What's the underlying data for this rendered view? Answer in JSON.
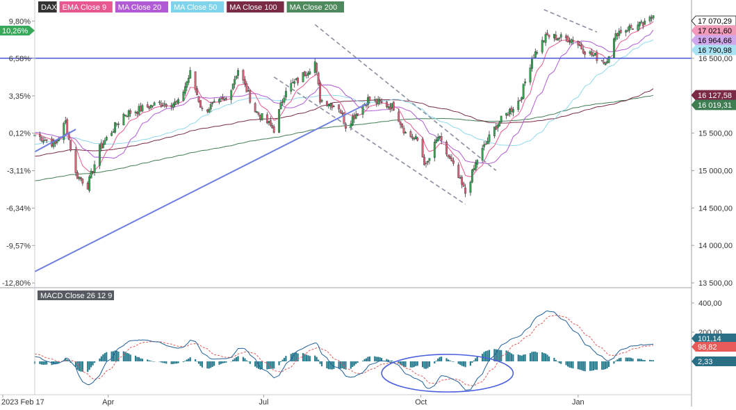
{
  "legend": [
    {
      "label": "DAX",
      "color": "#333333"
    },
    {
      "label": "EMA Close 9",
      "color": "#e8578f"
    },
    {
      "label": "MA Close 20",
      "color": "#b05ad6"
    },
    {
      "label": "MA Close 50",
      "color": "#7fd3ea"
    },
    {
      "label": "MA Close 100",
      "color": "#7a2a45"
    },
    {
      "label": "MA Close 200",
      "color": "#4e8a5e"
    }
  ],
  "price_axis": {
    "ticks": [
      "17 000,00",
      "16 500,00",
      "16 000,00",
      "15 500,00",
      "15 000,00",
      "14 500,00",
      "14 000,00",
      "13 500,00"
    ],
    "tick_values": [
      17000,
      16500,
      16000,
      15500,
      15000,
      14500,
      14000,
      13500
    ]
  },
  "pct_axis": {
    "ticks": [
      "9,80%",
      "6,58%",
      "3,35%",
      "0,12%",
      "-3,11%",
      "-6,34%",
      "-9,57%",
      "-12,80%"
    ],
    "tick_values": [
      9.8,
      6.58,
      3.35,
      0.12,
      -3.11,
      -6.34,
      -9.57,
      -12.8
    ],
    "current_label": "10,26%"
  },
  "value_badges": [
    {
      "label": "17 070,29",
      "series": "DAX",
      "value": 17070.29,
      "bg": "#ffffff",
      "fg": "#000000",
      "border": "#000000"
    },
    {
      "label": "17 021,60",
      "series": "EMA Close 9",
      "value": 17021.6,
      "bg": "#f29ab9",
      "fg": "#000000",
      "border": "#f29ab9"
    },
    {
      "label": "16 964,66",
      "series": "MA Close 20",
      "value": 16964.66,
      "bg": "#d2a8ec",
      "fg": "#000000",
      "border": "#d2a8ec"
    },
    {
      "label": "16 790,98",
      "series": "MA Close 50",
      "value": 16790.98,
      "bg": "#a9e3f3",
      "fg": "#000000",
      "border": "#a9e3f3"
    },
    {
      "label": "16 127,58",
      "series": "MA Close 100",
      "value": 16127.58,
      "bg": "#7a2a45",
      "fg": "#ffffff",
      "border": "#7a2a45"
    },
    {
      "label": "16 019,31",
      "series": "MA Close 200",
      "value": 16019.31,
      "bg": "#3f7d53",
      "fg": "#ffffff",
      "border": "#3f7d53"
    }
  ],
  "macd": {
    "label": "MACD Close 26 12 9",
    "ticks": [
      "400,00",
      "200,00"
    ],
    "tick_values": [
      400,
      200
    ],
    "badges": [
      {
        "label": "101,14",
        "value": 101.14,
        "bg": "#2a6f86",
        "fg": "#ffffff"
      },
      {
        "label": "98,82",
        "value": 98.82,
        "bg": "#e85a5a",
        "fg": "#ffffff"
      },
      {
        "label": "2,33",
        "value": 2.33,
        "bg": "#2a6f86",
        "fg": "#ffffff"
      }
    ]
  },
  "time_axis": {
    "labels": [
      "2023 Feb 17",
      "Apr",
      "Jul",
      "Oct",
      "Jan"
    ]
  },
  "colors": {
    "up": "#2fa84f",
    "down": "#e0607a",
    "trend_blue": "#6d7fe0",
    "channel": "#8a8fa0",
    "horizontal": "#3a48d8",
    "macd_line": "#1f5f9a",
    "signal_line": "#e05a5a",
    "hist": "#2a7d8f"
  },
  "chart_data": {
    "type": "candlestick",
    "title": "DAX",
    "date_range": [
      "2023-02-17",
      "2024-02-16"
    ],
    "x_labels": [
      "2023 Feb 17",
      "Apr",
      "Jul",
      "Oct",
      "Jan"
    ],
    "ylim": [
      13500,
      17250
    ],
    "anchor_closes": [
      {
        "date": "2023-02-17",
        "close": 15480
      },
      {
        "date": "2023-03-01",
        "close": 15350
      },
      {
        "date": "2023-03-07",
        "close": 15650
      },
      {
        "date": "2023-03-13",
        "close": 14950
      },
      {
        "date": "2023-03-20",
        "close": 14800
      },
      {
        "date": "2023-03-27",
        "close": 15300
      },
      {
        "date": "2023-04-10",
        "close": 15750
      },
      {
        "date": "2023-04-24",
        "close": 15850
      },
      {
        "date": "2023-05-01",
        "close": 15900
      },
      {
        "date": "2023-05-12",
        "close": 15900
      },
      {
        "date": "2023-05-19",
        "close": 16300
      },
      {
        "date": "2023-05-26",
        "close": 15800
      },
      {
        "date": "2023-06-09",
        "close": 15950
      },
      {
        "date": "2023-06-16",
        "close": 16350
      },
      {
        "date": "2023-06-26",
        "close": 15800
      },
      {
        "date": "2023-07-07",
        "close": 15550
      },
      {
        "date": "2023-07-14",
        "close": 16100
      },
      {
        "date": "2023-07-21",
        "close": 16200
      },
      {
        "date": "2023-07-31",
        "close": 16450
      },
      {
        "date": "2023-08-03",
        "close": 15950
      },
      {
        "date": "2023-08-14",
        "close": 15850
      },
      {
        "date": "2023-08-18",
        "close": 15600
      },
      {
        "date": "2023-08-31",
        "close": 15950
      },
      {
        "date": "2023-09-15",
        "close": 15850
      },
      {
        "date": "2023-09-22",
        "close": 15500
      },
      {
        "date": "2023-09-29",
        "close": 15400
      },
      {
        "date": "2023-10-04",
        "close": 15050
      },
      {
        "date": "2023-10-11",
        "close": 15450
      },
      {
        "date": "2023-10-20",
        "close": 15050
      },
      {
        "date": "2023-10-27",
        "close": 14700
      },
      {
        "date": "2023-11-03",
        "close": 15150
      },
      {
        "date": "2023-11-14",
        "close": 15600
      },
      {
        "date": "2023-11-28",
        "close": 15950
      },
      {
        "date": "2023-12-05",
        "close": 16500
      },
      {
        "date": "2023-12-12",
        "close": 16750
      },
      {
        "date": "2023-12-14",
        "close": 16800
      },
      {
        "date": "2023-12-29",
        "close": 16750
      },
      {
        "date": "2024-01-05",
        "close": 16600
      },
      {
        "date": "2024-01-17",
        "close": 16450
      },
      {
        "date": "2024-01-24",
        "close": 16850
      },
      {
        "date": "2024-02-02",
        "close": 16920
      },
      {
        "date": "2024-02-09",
        "close": 16950
      },
      {
        "date": "2024-02-14",
        "close": 17070
      }
    ],
    "annotations": [
      {
        "type": "horizontal_line",
        "value": 16500
      },
      {
        "type": "trendline",
        "from": {
          "date": "2023-02-17",
          "value": 13650
        },
        "to": {
          "date": "2023-08-31",
          "value": 15900
        }
      },
      {
        "type": "trendline",
        "from": {
          "date": "2023-02-17",
          "value": 15250
        },
        "to": {
          "date": "2023-03-13",
          "value": 15550
        }
      },
      {
        "type": "channel_upper",
        "from": {
          "date": "2023-07-31",
          "value": 16950
        },
        "to": {
          "date": "2023-11-14",
          "value": 15000
        }
      },
      {
        "type": "channel_lower",
        "from": {
          "date": "2023-07-07",
          "value": 16250
        },
        "to": {
          "date": "2023-10-27",
          "value": 14550
        }
      },
      {
        "type": "trendline",
        "from": {
          "date": "2023-12-12",
          "value": 17150
        },
        "to": {
          "date": "2024-01-12",
          "value": 16850
        }
      },
      {
        "type": "ellipse",
        "on": "MACD",
        "from_date": "2023-09-08",
        "to_date": "2023-11-24"
      }
    ]
  }
}
